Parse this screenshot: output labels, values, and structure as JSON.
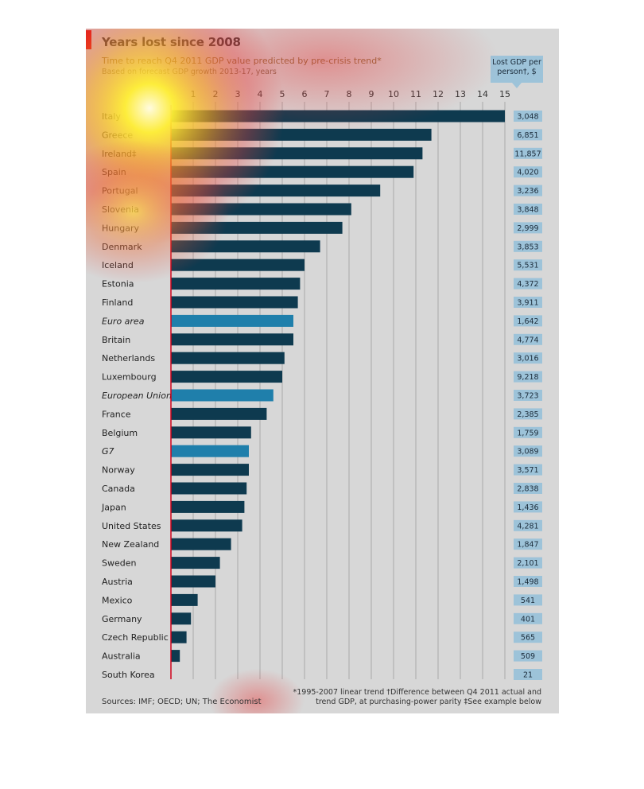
{
  "header": {
    "title": "Years lost since 2008",
    "subtitle": "Time to reach Q4 2011 GDP value predicted by pre-crisis trend*",
    "subtitle2": "Based on forecast GDP growth 2013-17, years",
    "lost_label_line1": "Lost GDP per",
    "lost_label_line2": "person†, $"
  },
  "footer": {
    "sources": "Sources: IMF; OECD; UN; The Economist",
    "footnote_line1": "*1995-2007 linear trend   †Difference between Q4 2011 actual and",
    "footnote_line2": "trend GDP, at purchasing-power parity  ‡See example below"
  },
  "colors": {
    "bar_country": "#0e3a4f",
    "bar_aggregate": "#1f7fab",
    "axis_red": "#d0021b",
    "label_box": "#9dc3d9",
    "background": "#d7d7d7"
  },
  "chart_data": {
    "type": "bar",
    "orientation": "horizontal",
    "title": "Years lost since 2008",
    "subtitle": "Time to reach Q4 2011 GDP value predicted by pre-crisis trend*",
    "xlabel": "Based on forecast GDP growth 2013-17, years",
    "xlim": [
      0,
      15
    ],
    "xticks": [
      1,
      2,
      3,
      4,
      5,
      6,
      7,
      8,
      9,
      10,
      11,
      12,
      13,
      14,
      15
    ],
    "grid": true,
    "categories": [
      "Italy",
      "Greece",
      "Ireland‡",
      "Spain",
      "Portugal",
      "Slovenia",
      "Hungary",
      "Denmark",
      "Iceland",
      "Estonia",
      "Finland",
      "Euro area",
      "Britain",
      "Netherlands",
      "Luxembourg",
      "European Union",
      "France",
      "Belgium",
      "G7",
      "Norway",
      "Canada",
      "Japan",
      "United States",
      "New Zealand",
      "Sweden",
      "Austria",
      "Mexico",
      "Germany",
      "Czech Republic",
      "Australia",
      "South Korea"
    ],
    "aggregates": [
      "Euro area",
      "European Union",
      "G7"
    ],
    "series": [
      {
        "values": [
          15,
          11.7,
          11.3,
          10.9,
          9.4,
          8.1,
          7.7,
          6.7,
          6.0,
          5.8,
          5.7,
          5.5,
          5.5,
          5.1,
          5.0,
          4.6,
          4.3,
          3.6,
          3.5,
          3.5,
          3.4,
          3.3,
          3.2,
          2.7,
          2.2,
          2.0,
          1.2,
          0.9,
          0.7,
          0.4,
          0
        ]
      },
      {
        "name": "Lost GDP per person†, $",
        "values": [
          "3,048",
          "6,851",
          "11,857",
          "4,020",
          "3,236",
          "3,848",
          "2,999",
          "3,853",
          "5,531",
          "4,372",
          "3,911",
          "1,642",
          "4,774",
          "3,016",
          "9,218",
          "3,723",
          "2,385",
          "1,759",
          "3,089",
          "3,571",
          "2,838",
          "1,436",
          "4,281",
          "1,847",
          "2,101",
          "1,498",
          "541",
          "401",
          "565",
          "509",
          "21"
        ]
      }
    ]
  }
}
